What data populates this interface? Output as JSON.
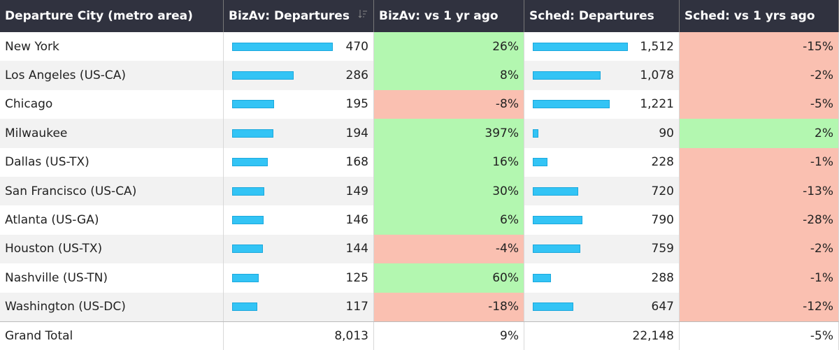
{
  "table": {
    "columns": [
      "Departure City (metro area)",
      "BizAv: Departures",
      "BizAv: vs 1 yr ago",
      "Sched: Departures",
      "Sched: vs 1 yrs ago"
    ],
    "rows": [
      {
        "city": "New York",
        "bizav": 470,
        "bizav_change": {
          "value": 26,
          "label": "26%"
        },
        "sched": {
          "value": 1512,
          "label": "1,512"
        },
        "sched_change": {
          "value": -15,
          "label": "-15%"
        }
      },
      {
        "city": "Los Angeles (US-CA)",
        "bizav": 286,
        "bizav_change": {
          "value": 8,
          "label": "8%"
        },
        "sched": {
          "value": 1078,
          "label": "1,078"
        },
        "sched_change": {
          "value": -2,
          "label": "-2%"
        }
      },
      {
        "city": "Chicago",
        "bizav": 195,
        "bizav_change": {
          "value": -8,
          "label": "-8%"
        },
        "sched": {
          "value": 1221,
          "label": "1,221"
        },
        "sched_change": {
          "value": -5,
          "label": "-5%"
        }
      },
      {
        "city": "Milwaukee",
        "bizav": 194,
        "bizav_change": {
          "value": 397,
          "label": "397%"
        },
        "sched": 90,
        "sched_change": {
          "value": 2,
          "label": "2%"
        }
      },
      {
        "city": "Dallas (US-TX)",
        "bizav": 168,
        "bizav_change": {
          "value": 16,
          "label": "16%"
        },
        "sched": 228,
        "sched_change": {
          "value": -1,
          "label": "-1%"
        }
      },
      {
        "city": "San Francisco (US-CA)",
        "bizav": 149,
        "bizav_change": {
          "value": 30,
          "label": "30%"
        },
        "sched": 720,
        "sched_change": {
          "value": -13,
          "label": "-13%"
        }
      },
      {
        "city": "Atlanta (US-GA)",
        "bizav": 146,
        "bizav_change": {
          "value": 6,
          "label": "6%"
        },
        "sched": 790,
        "sched_change": {
          "value": -28,
          "label": "-28%"
        }
      },
      {
        "city": "Houston (US-TX)",
        "bizav": 144,
        "bizav_change": {
          "value": -4,
          "label": "-4%"
        },
        "sched": 759,
        "sched_change": {
          "value": -2,
          "label": "-2%"
        }
      },
      {
        "city": "Nashville (US-TN)",
        "bizav": 125,
        "bizav_change": {
          "value": 60,
          "label": "60%"
        },
        "sched": 288,
        "sched_change": {
          "value": -1,
          "label": "-1%"
        }
      },
      {
        "city": "Washington (US-DC)",
        "bizav": 117,
        "bizav_change": {
          "value": -18,
          "label": "-18%"
        },
        "sched": 647,
        "sched_change": {
          "value": -12,
          "label": "-12%"
        }
      }
    ],
    "total": {
      "city": "Grand Total",
      "bizav": {
        "value": 8013,
        "label": "8,013"
      },
      "bizav_change": {
        "value": 9,
        "label": "9%"
      },
      "sched": {
        "value": 22148,
        "label": "22,148"
      },
      "sched_change": {
        "value": -5,
        "label": "-5%"
      }
    }
  }
}
